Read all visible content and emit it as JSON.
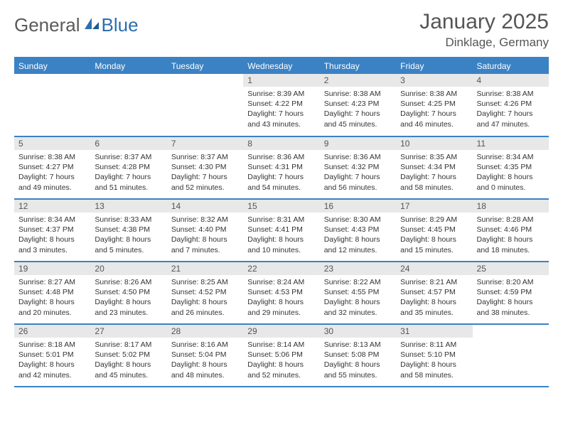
{
  "logo": {
    "text1": "General",
    "text2": "Blue"
  },
  "title": "January 2025",
  "location": "Dinklage, Germany",
  "colors": {
    "header_bg": "#3b82c4",
    "header_text": "#ffffff",
    "daynum_bg": "#e8e8e8",
    "border": "#3b82c4",
    "logo_gray": "#5a5a5a",
    "logo_blue": "#2b6fae",
    "text": "#333333"
  },
  "dayNames": [
    "Sunday",
    "Monday",
    "Tuesday",
    "Wednesday",
    "Thursday",
    "Friday",
    "Saturday"
  ],
  "weeks": [
    [
      {
        "n": "",
        "sr": "",
        "ss": "",
        "dl": ""
      },
      {
        "n": "",
        "sr": "",
        "ss": "",
        "dl": ""
      },
      {
        "n": "",
        "sr": "",
        "ss": "",
        "dl": ""
      },
      {
        "n": "1",
        "sr": "Sunrise: 8:39 AM",
        "ss": "Sunset: 4:22 PM",
        "dl": "Daylight: 7 hours and 43 minutes."
      },
      {
        "n": "2",
        "sr": "Sunrise: 8:38 AM",
        "ss": "Sunset: 4:23 PM",
        "dl": "Daylight: 7 hours and 45 minutes."
      },
      {
        "n": "3",
        "sr": "Sunrise: 8:38 AM",
        "ss": "Sunset: 4:25 PM",
        "dl": "Daylight: 7 hours and 46 minutes."
      },
      {
        "n": "4",
        "sr": "Sunrise: 8:38 AM",
        "ss": "Sunset: 4:26 PM",
        "dl": "Daylight: 7 hours and 47 minutes."
      }
    ],
    [
      {
        "n": "5",
        "sr": "Sunrise: 8:38 AM",
        "ss": "Sunset: 4:27 PM",
        "dl": "Daylight: 7 hours and 49 minutes."
      },
      {
        "n": "6",
        "sr": "Sunrise: 8:37 AM",
        "ss": "Sunset: 4:28 PM",
        "dl": "Daylight: 7 hours and 51 minutes."
      },
      {
        "n": "7",
        "sr": "Sunrise: 8:37 AM",
        "ss": "Sunset: 4:30 PM",
        "dl": "Daylight: 7 hours and 52 minutes."
      },
      {
        "n": "8",
        "sr": "Sunrise: 8:36 AM",
        "ss": "Sunset: 4:31 PM",
        "dl": "Daylight: 7 hours and 54 minutes."
      },
      {
        "n": "9",
        "sr": "Sunrise: 8:36 AM",
        "ss": "Sunset: 4:32 PM",
        "dl": "Daylight: 7 hours and 56 minutes."
      },
      {
        "n": "10",
        "sr": "Sunrise: 8:35 AM",
        "ss": "Sunset: 4:34 PM",
        "dl": "Daylight: 7 hours and 58 minutes."
      },
      {
        "n": "11",
        "sr": "Sunrise: 8:34 AM",
        "ss": "Sunset: 4:35 PM",
        "dl": "Daylight: 8 hours and 0 minutes."
      }
    ],
    [
      {
        "n": "12",
        "sr": "Sunrise: 8:34 AM",
        "ss": "Sunset: 4:37 PM",
        "dl": "Daylight: 8 hours and 3 minutes."
      },
      {
        "n": "13",
        "sr": "Sunrise: 8:33 AM",
        "ss": "Sunset: 4:38 PM",
        "dl": "Daylight: 8 hours and 5 minutes."
      },
      {
        "n": "14",
        "sr": "Sunrise: 8:32 AM",
        "ss": "Sunset: 4:40 PM",
        "dl": "Daylight: 8 hours and 7 minutes."
      },
      {
        "n": "15",
        "sr": "Sunrise: 8:31 AM",
        "ss": "Sunset: 4:41 PM",
        "dl": "Daylight: 8 hours and 10 minutes."
      },
      {
        "n": "16",
        "sr": "Sunrise: 8:30 AM",
        "ss": "Sunset: 4:43 PM",
        "dl": "Daylight: 8 hours and 12 minutes."
      },
      {
        "n": "17",
        "sr": "Sunrise: 8:29 AM",
        "ss": "Sunset: 4:45 PM",
        "dl": "Daylight: 8 hours and 15 minutes."
      },
      {
        "n": "18",
        "sr": "Sunrise: 8:28 AM",
        "ss": "Sunset: 4:46 PM",
        "dl": "Daylight: 8 hours and 18 minutes."
      }
    ],
    [
      {
        "n": "19",
        "sr": "Sunrise: 8:27 AM",
        "ss": "Sunset: 4:48 PM",
        "dl": "Daylight: 8 hours and 20 minutes."
      },
      {
        "n": "20",
        "sr": "Sunrise: 8:26 AM",
        "ss": "Sunset: 4:50 PM",
        "dl": "Daylight: 8 hours and 23 minutes."
      },
      {
        "n": "21",
        "sr": "Sunrise: 8:25 AM",
        "ss": "Sunset: 4:52 PM",
        "dl": "Daylight: 8 hours and 26 minutes."
      },
      {
        "n": "22",
        "sr": "Sunrise: 8:24 AM",
        "ss": "Sunset: 4:53 PM",
        "dl": "Daylight: 8 hours and 29 minutes."
      },
      {
        "n": "23",
        "sr": "Sunrise: 8:22 AM",
        "ss": "Sunset: 4:55 PM",
        "dl": "Daylight: 8 hours and 32 minutes."
      },
      {
        "n": "24",
        "sr": "Sunrise: 8:21 AM",
        "ss": "Sunset: 4:57 PM",
        "dl": "Daylight: 8 hours and 35 minutes."
      },
      {
        "n": "25",
        "sr": "Sunrise: 8:20 AM",
        "ss": "Sunset: 4:59 PM",
        "dl": "Daylight: 8 hours and 38 minutes."
      }
    ],
    [
      {
        "n": "26",
        "sr": "Sunrise: 8:18 AM",
        "ss": "Sunset: 5:01 PM",
        "dl": "Daylight: 8 hours and 42 minutes."
      },
      {
        "n": "27",
        "sr": "Sunrise: 8:17 AM",
        "ss": "Sunset: 5:02 PM",
        "dl": "Daylight: 8 hours and 45 minutes."
      },
      {
        "n": "28",
        "sr": "Sunrise: 8:16 AM",
        "ss": "Sunset: 5:04 PM",
        "dl": "Daylight: 8 hours and 48 minutes."
      },
      {
        "n": "29",
        "sr": "Sunrise: 8:14 AM",
        "ss": "Sunset: 5:06 PM",
        "dl": "Daylight: 8 hours and 52 minutes."
      },
      {
        "n": "30",
        "sr": "Sunrise: 8:13 AM",
        "ss": "Sunset: 5:08 PM",
        "dl": "Daylight: 8 hours and 55 minutes."
      },
      {
        "n": "31",
        "sr": "Sunrise: 8:11 AM",
        "ss": "Sunset: 5:10 PM",
        "dl": "Daylight: 8 hours and 58 minutes."
      },
      {
        "n": "",
        "sr": "",
        "ss": "",
        "dl": ""
      }
    ]
  ]
}
